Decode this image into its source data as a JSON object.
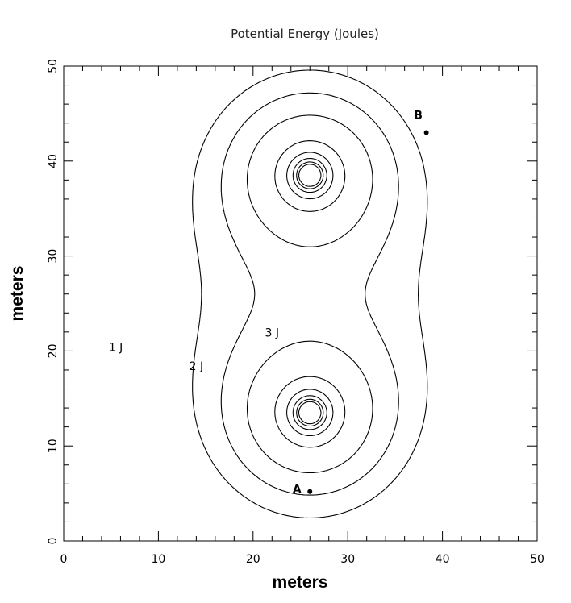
{
  "chart_data": {
    "type": "contour",
    "title": "Potential Energy (Joules)",
    "xlabel": "meters",
    "ylabel": "meters",
    "xlim": [
      0,
      50
    ],
    "ylim": [
      0,
      50
    ],
    "xticks": [
      0,
      10,
      20,
      30,
      40,
      50
    ],
    "yticks": [
      0,
      10,
      20,
      30,
      40,
      50
    ],
    "grid": false,
    "sources": [
      {
        "x": 26,
        "y": 13.5
      },
      {
        "x": 26,
        "y": 38.5
      }
    ],
    "contour_levels": [
      {
        "label": "1 J",
        "label_x": 5.5,
        "label_y": 20
      },
      {
        "label": "2 J",
        "label_x": 14,
        "label_y": 18
      },
      {
        "label": "3 J",
        "label_x": 22,
        "label_y": 21.5
      }
    ],
    "points": [
      {
        "label": "A",
        "x": 26,
        "y": 5.2
      },
      {
        "label": "B",
        "x": 38.3,
        "y": 43
      }
    ]
  }
}
